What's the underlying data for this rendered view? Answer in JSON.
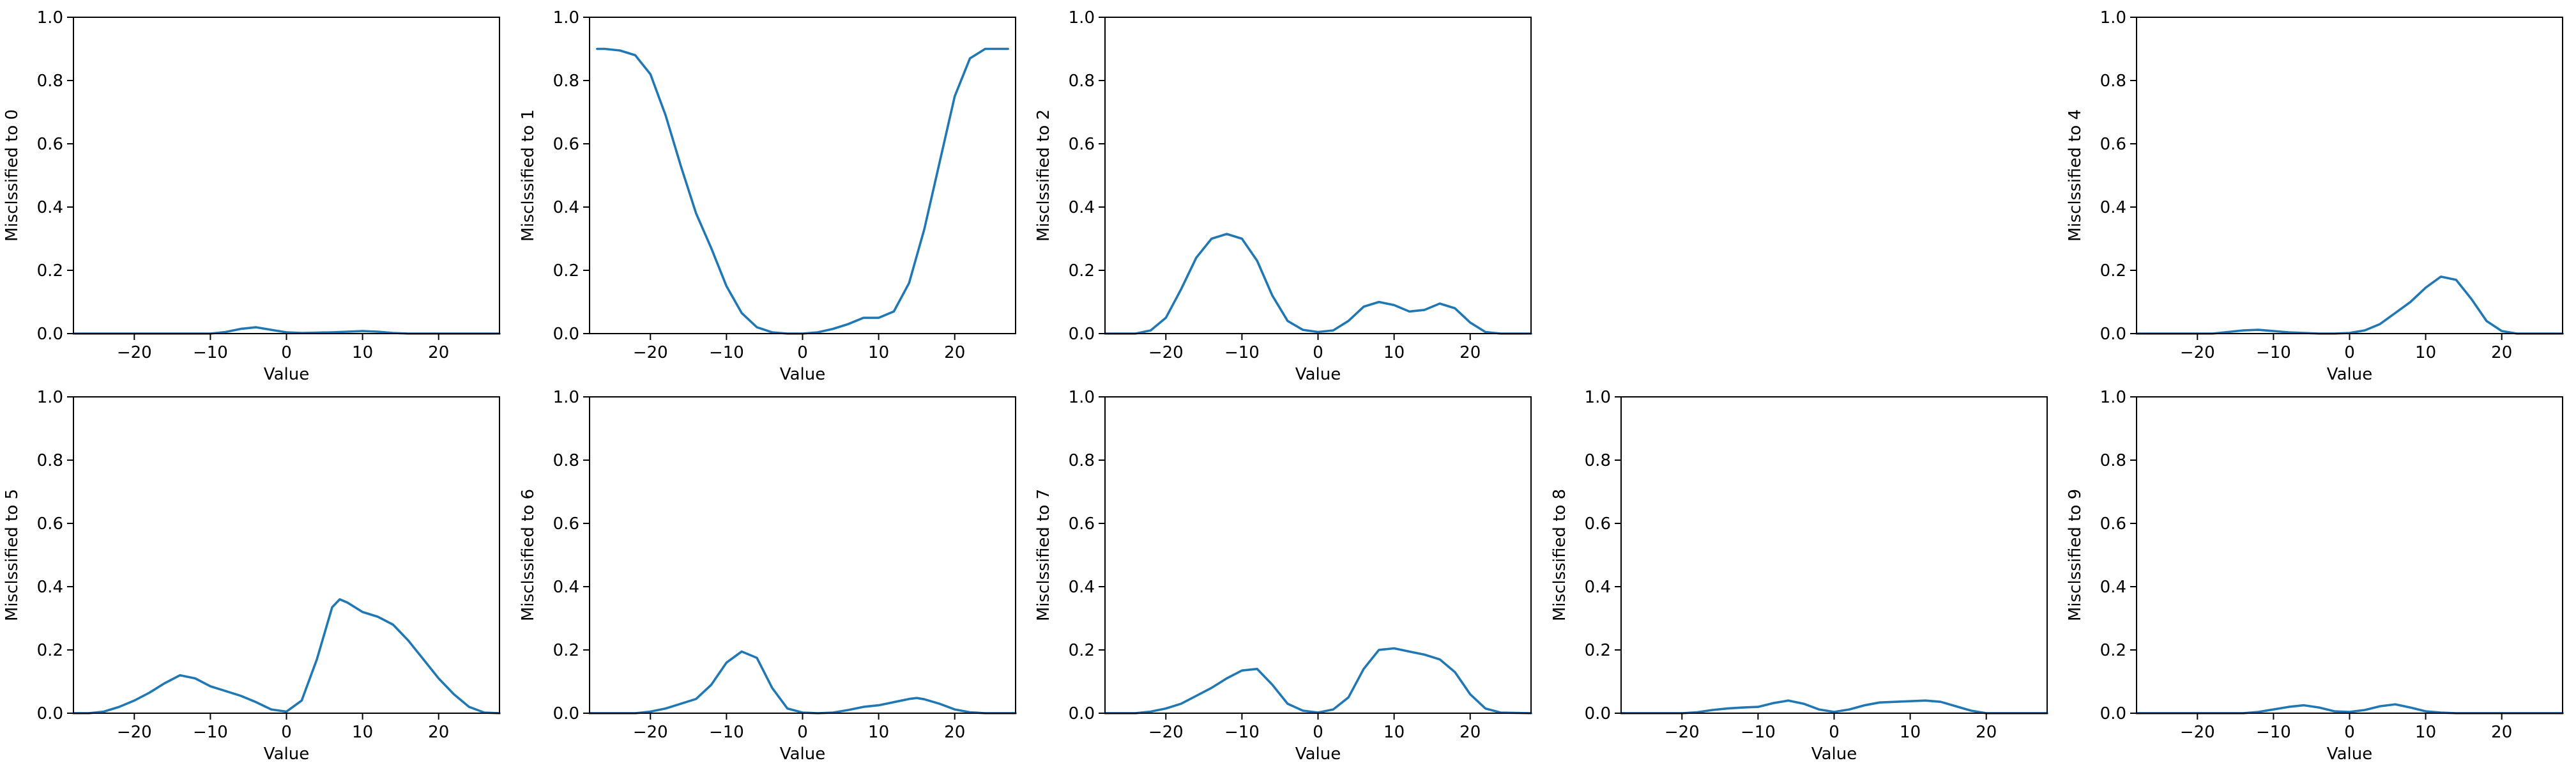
{
  "figure": {
    "line_color": "#1f77b4",
    "subplot_type": "line",
    "shared_xlabel": "Value"
  },
  "chart_data": [
    {
      "type": "line",
      "xlabel": "Value",
      "ylabel": "Misclssified to 0",
      "xlim": [
        -28,
        28
      ],
      "ylim": [
        0,
        1
      ],
      "xticks": [
        -20,
        -10,
        0,
        10,
        20
      ],
      "yticks": [
        0.0,
        0.2,
        0.4,
        0.6,
        0.8,
        1.0
      ],
      "series": [
        {
          "x": [
            -28,
            -10,
            -8,
            -6,
            -4,
            -2,
            0,
            2,
            4,
            6,
            8,
            10,
            12,
            14,
            16,
            28
          ],
          "y": [
            0,
            0,
            0.005,
            0.015,
            0.02,
            0.012,
            0.004,
            0.002,
            0.003,
            0.004,
            0.006,
            0.008,
            0.006,
            0.002,
            0,
            0
          ]
        }
      ]
    },
    {
      "type": "line",
      "xlabel": "Value",
      "ylabel": "Misclssified to 1",
      "xlim": [
        -28,
        28
      ],
      "ylim": [
        0,
        1
      ],
      "xticks": [
        -20,
        -10,
        0,
        10,
        20
      ],
      "yticks": [
        0.0,
        0.2,
        0.4,
        0.6,
        0.8,
        1.0
      ],
      "series": [
        {
          "x": [
            -27,
            -26,
            -24,
            -22,
            -20,
            -18,
            -16,
            -14,
            -12,
            -10,
            -8,
            -6,
            -4,
            -2,
            0,
            2,
            4,
            6,
            8,
            10,
            12,
            14,
            16,
            18,
            20,
            22,
            24,
            26,
            27
          ],
          "y": [
            0.9,
            0.9,
            0.895,
            0.88,
            0.82,
            0.69,
            0.53,
            0.38,
            0.27,
            0.15,
            0.065,
            0.02,
            0.004,
            0.0,
            0.0,
            0.004,
            0.015,
            0.03,
            0.05,
            0.05,
            0.07,
            0.16,
            0.33,
            0.54,
            0.75,
            0.87,
            0.9,
            0.9,
            0.9
          ]
        }
      ]
    },
    {
      "type": "line",
      "xlabel": "Value",
      "ylabel": "Misclssified to 2",
      "xlim": [
        -28,
        28
      ],
      "ylim": [
        0,
        1
      ],
      "xticks": [
        -20,
        -10,
        0,
        10,
        20
      ],
      "yticks": [
        0.0,
        0.2,
        0.4,
        0.6,
        0.8,
        1.0
      ],
      "series": [
        {
          "x": [
            -28,
            -24,
            -22,
            -20,
            -18,
            -16,
            -14,
            -12,
            -10,
            -8,
            -6,
            -4,
            -2,
            0,
            2,
            4,
            6,
            8,
            10,
            12,
            14,
            16,
            18,
            20,
            22,
            24,
            28
          ],
          "y": [
            0,
            0,
            0.01,
            0.05,
            0.14,
            0.24,
            0.3,
            0.315,
            0.3,
            0.23,
            0.12,
            0.04,
            0.012,
            0.005,
            0.01,
            0.04,
            0.085,
            0.1,
            0.09,
            0.07,
            0.075,
            0.095,
            0.08,
            0.035,
            0.005,
            0,
            0
          ]
        }
      ]
    },
    {
      "type": "line",
      "xlabel": "Value",
      "ylabel": "Misclssified to 4",
      "xlim": [
        -28,
        28
      ],
      "ylim": [
        0,
        1
      ],
      "xticks": [
        -20,
        -10,
        0,
        10,
        20
      ],
      "yticks": [
        0.0,
        0.2,
        0.4,
        0.6,
        0.8,
        1.0
      ],
      "series": [
        {
          "x": [
            -28,
            -18,
            -16,
            -14,
            -12,
            -10,
            -8,
            -6,
            -4,
            -2,
            0,
            2,
            4,
            6,
            8,
            10,
            12,
            14,
            16,
            18,
            20,
            22,
            28
          ],
          "y": [
            0,
            0,
            0.005,
            0.01,
            0.012,
            0.008,
            0.004,
            0.002,
            0,
            0,
            0.002,
            0.01,
            0.03,
            0.065,
            0.1,
            0.145,
            0.18,
            0.17,
            0.11,
            0.04,
            0.008,
            0,
            0
          ]
        }
      ]
    },
    {
      "type": "line",
      "xlabel": "Value",
      "ylabel": "Misclssified to 5",
      "xlim": [
        -28,
        28
      ],
      "ylim": [
        0,
        1
      ],
      "xticks": [
        -20,
        -10,
        0,
        10,
        20
      ],
      "yticks": [
        0.0,
        0.2,
        0.4,
        0.6,
        0.8,
        1.0
      ],
      "series": [
        {
          "x": [
            -28,
            -26,
            -24,
            -22,
            -20,
            -18,
            -16,
            -14,
            -12,
            -10,
            -8,
            -6,
            -4,
            -2,
            0,
            2,
            4,
            6,
            7,
            8,
            10,
            12,
            14,
            16,
            18,
            20,
            22,
            24,
            26,
            28
          ],
          "y": [
            0,
            0,
            0.005,
            0.02,
            0.04,
            0.065,
            0.095,
            0.12,
            0.11,
            0.085,
            0.07,
            0.055,
            0.035,
            0.012,
            0.005,
            0.04,
            0.17,
            0.335,
            0.36,
            0.35,
            0.32,
            0.305,
            0.28,
            0.23,
            0.17,
            0.11,
            0.06,
            0.02,
            0.002,
            0
          ]
        }
      ]
    },
    {
      "type": "line",
      "xlabel": "Value",
      "ylabel": "Misclssified to 6",
      "xlim": [
        -28,
        28
      ],
      "ylim": [
        0,
        1
      ],
      "xticks": [
        -20,
        -10,
        0,
        10,
        20
      ],
      "yticks": [
        0.0,
        0.2,
        0.4,
        0.6,
        0.8,
        1.0
      ],
      "series": [
        {
          "x": [
            -28,
            -22,
            -20,
            -18,
            -16,
            -14,
            -12,
            -10,
            -8,
            -6,
            -4,
            -2,
            0,
            2,
            4,
            6,
            8,
            10,
            12,
            14,
            15,
            16,
            18,
            20,
            22,
            24,
            28
          ],
          "y": [
            0,
            0,
            0.005,
            0.015,
            0.03,
            0.045,
            0.09,
            0.16,
            0.195,
            0.175,
            0.08,
            0.015,
            0.002,
            0,
            0.002,
            0.01,
            0.02,
            0.025,
            0.035,
            0.045,
            0.048,
            0.044,
            0.03,
            0.012,
            0.003,
            0,
            0
          ]
        }
      ]
    },
    {
      "type": "line",
      "xlabel": "Value",
      "ylabel": "Misclssified to 7",
      "xlim": [
        -28,
        28
      ],
      "ylim": [
        0,
        1
      ],
      "xticks": [
        -20,
        -10,
        0,
        10,
        20
      ],
      "yticks": [
        0.0,
        0.2,
        0.4,
        0.6,
        0.8,
        1.0
      ],
      "series": [
        {
          "x": [
            -28,
            -24,
            -22,
            -20,
            -18,
            -16,
            -14,
            -12,
            -10,
            -8,
            -6,
            -4,
            -2,
            0,
            2,
            4,
            6,
            8,
            10,
            12,
            14,
            16,
            18,
            20,
            22,
            24,
            28
          ],
          "y": [
            0,
            0,
            0.005,
            0.015,
            0.03,
            0.055,
            0.08,
            0.11,
            0.135,
            0.14,
            0.09,
            0.03,
            0.008,
            0.002,
            0.012,
            0.05,
            0.14,
            0.2,
            0.205,
            0.195,
            0.185,
            0.17,
            0.13,
            0.06,
            0.015,
            0.002,
            0
          ]
        }
      ]
    },
    {
      "type": "line",
      "xlabel": "Value",
      "ylabel": "Misclssified to 8",
      "xlim": [
        -28,
        28
      ],
      "ylim": [
        0,
        1
      ],
      "xticks": [
        -20,
        -10,
        0,
        10,
        20
      ],
      "yticks": [
        0.0,
        0.2,
        0.4,
        0.6,
        0.8,
        1.0
      ],
      "series": [
        {
          "x": [
            -28,
            -20,
            -18,
            -16,
            -14,
            -12,
            -10,
            -8,
            -6,
            -4,
            -2,
            0,
            2,
            4,
            6,
            8,
            10,
            12,
            14,
            16,
            18,
            20,
            28
          ],
          "y": [
            0,
            0,
            0.003,
            0.01,
            0.015,
            0.018,
            0.02,
            0.032,
            0.04,
            0.03,
            0.012,
            0.004,
            0.012,
            0.025,
            0.034,
            0.036,
            0.038,
            0.04,
            0.036,
            0.022,
            0.008,
            0,
            0
          ]
        }
      ]
    },
    {
      "type": "line",
      "xlabel": "Value",
      "ylabel": "Misclssified to 9",
      "xlim": [
        -28,
        28
      ],
      "ylim": [
        0,
        1
      ],
      "xticks": [
        -20,
        -10,
        0,
        10,
        20
      ],
      "yticks": [
        0.0,
        0.2,
        0.4,
        0.6,
        0.8,
        1.0
      ],
      "series": [
        {
          "x": [
            -28,
            -14,
            -12,
            -10,
            -8,
            -6,
            -4,
            -2,
            0,
            2,
            4,
            6,
            8,
            10,
            12,
            14,
            28
          ],
          "y": [
            0,
            0,
            0.004,
            0.012,
            0.02,
            0.025,
            0.018,
            0.006,
            0.004,
            0.01,
            0.022,
            0.028,
            0.018,
            0.006,
            0.002,
            0,
            0
          ]
        }
      ]
    }
  ]
}
